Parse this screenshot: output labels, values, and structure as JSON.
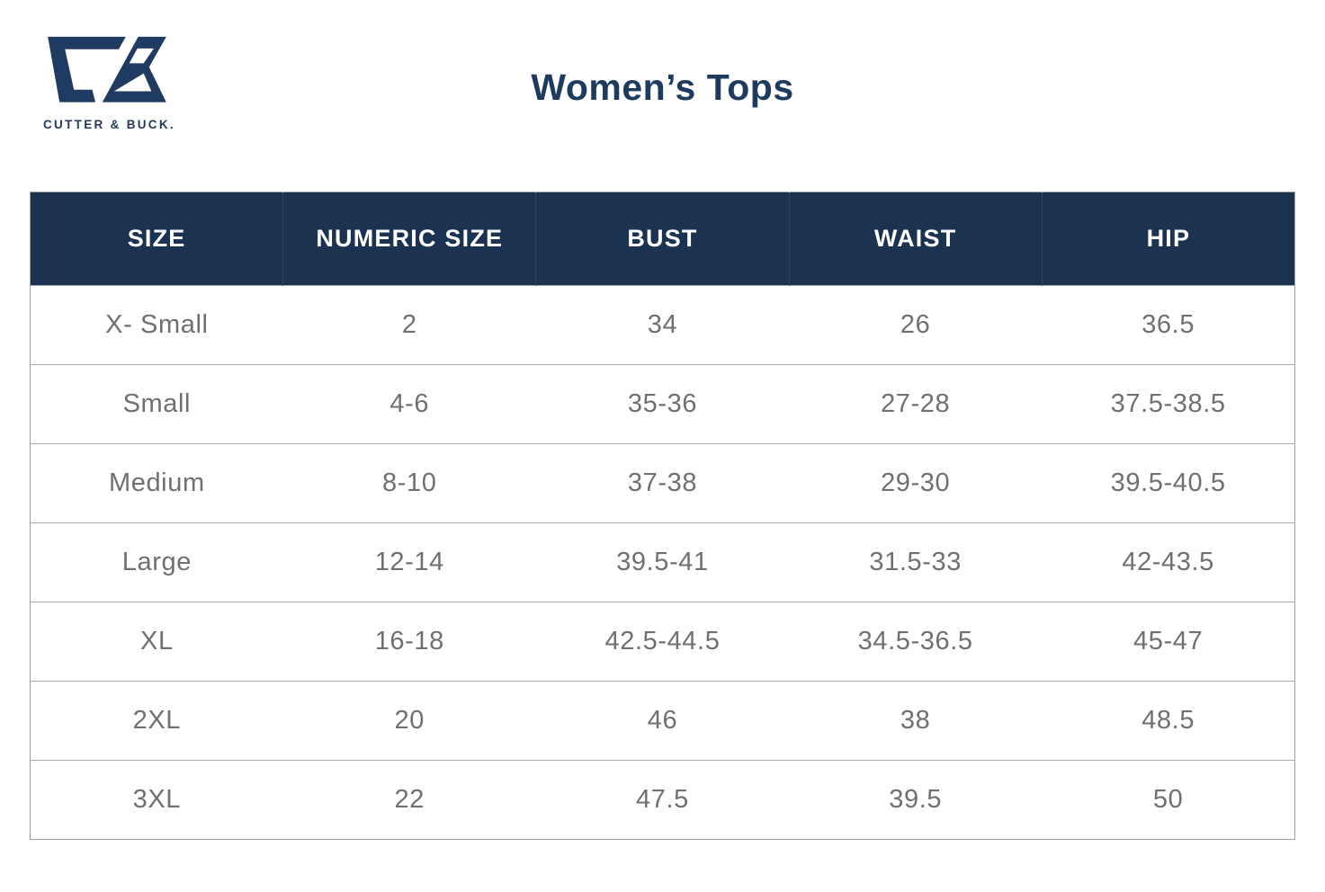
{
  "brand": {
    "logo_icon": "cutter-buck-cb-monogram",
    "logo_text": "CUTTER & BUCK.",
    "color": "#203B61"
  },
  "page": {
    "title": "Women’s Tops",
    "background": "#FFFFFF"
  },
  "colors": {
    "title_text": "#1D3A5F",
    "table_header_bg": "#1B3350",
    "table_header_text": "#FFFFFF",
    "table_cell_text": "#6F7073",
    "table_border": "#9E9E9E"
  },
  "chart_data": {
    "type": "table",
    "title": "Women’s Tops",
    "columns": [
      "SIZE",
      "NUMERIC SIZE",
      "BUST",
      "WAIST",
      "HIP"
    ],
    "rows": [
      [
        "X- Small",
        "2",
        "34",
        "26",
        "36.5"
      ],
      [
        "Small",
        "4-6",
        "35-36",
        "27-28",
        "37.5-38.5"
      ],
      [
        "Medium",
        "8-10",
        "37-38",
        "29-30",
        "39.5-40.5"
      ],
      [
        "Large",
        "12-14",
        "39.5-41",
        "31.5-33",
        "42-43.5"
      ],
      [
        "XL",
        "16-18",
        "42.5-44.5",
        "34.5-36.5",
        "45-47"
      ],
      [
        "2XL",
        "20",
        "46",
        "38",
        "48.5"
      ],
      [
        "3XL",
        "22",
        "47.5",
        "39.5",
        "50"
      ]
    ],
    "layout": {
      "header_position": "top",
      "grid": "horizontal-only",
      "column_count": 5,
      "row_count": 7
    }
  }
}
